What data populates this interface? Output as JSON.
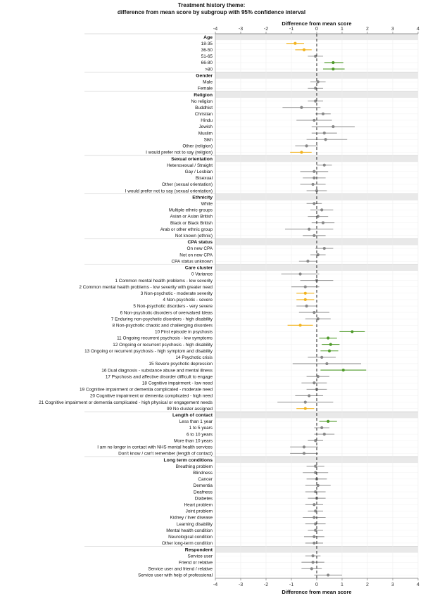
{
  "chart_data": {
    "type": "scatter",
    "title": "Treatment history theme:",
    "subtitle": "difference from mean score by subgroup with 95% confidence interval",
    "xlabel": "Difference from mean score",
    "xlabel_bottom": "Difference from mean score",
    "xlim": [
      -4,
      4
    ],
    "xticks": [
      "-4",
      "-3",
      "-2",
      "-1",
      "0",
      "1",
      "2",
      "3",
      "4"
    ],
    "reference_line": 0,
    "colors": {
      "below": "#f2b21c",
      "above": "#4f9a2a",
      "neutral": "#888888",
      "ci_neutral": "#9a9a9a"
    },
    "groups": [
      {
        "name": "Age",
        "rows": [
          {
            "label": "18-35",
            "value": -0.85,
            "low": -1.2,
            "high": -0.5,
            "sig": "below"
          },
          {
            "label": "36-50",
            "value": -0.5,
            "low": -0.85,
            "high": -0.2,
            "sig": "below"
          },
          {
            "label": "51-65",
            "value": -0.05,
            "low": -0.35,
            "high": 0.25,
            "sig": "none"
          },
          {
            "label": "66-80",
            "value": 0.65,
            "low": 0.3,
            "high": 1.05,
            "sig": "above"
          },
          {
            "label": ">80",
            "value": 0.65,
            "low": 0.25,
            "high": 1.1,
            "sig": "above"
          }
        ]
      },
      {
        "name": "Gender",
        "rows": [
          {
            "label": "Male",
            "value": 0.05,
            "low": -0.25,
            "high": 0.35,
            "sig": "none"
          },
          {
            "label": "Female",
            "value": -0.05,
            "low": -0.35,
            "high": 0.25,
            "sig": "none"
          }
        ]
      },
      {
        "name": "Religion",
        "rows": [
          {
            "label": "No religion",
            "value": -0.05,
            "low": -0.35,
            "high": 0.25,
            "sig": "none"
          },
          {
            "label": "Buddhist",
            "value": -0.6,
            "low": -1.35,
            "high": 0.15,
            "sig": "none"
          },
          {
            "label": "Christian",
            "value": 0.25,
            "low": -0.05,
            "high": 0.55,
            "sig": "none"
          },
          {
            "label": "Hindu",
            "value": -0.1,
            "low": -0.8,
            "high": 0.6,
            "sig": "none"
          },
          {
            "label": "Jewish",
            "value": 0.65,
            "low": -0.2,
            "high": 1.5,
            "sig": "none"
          },
          {
            "label": "Muslim",
            "value": 0.3,
            "low": -0.2,
            "high": 0.8,
            "sig": "none"
          },
          {
            "label": "Sikh",
            "value": 0.35,
            "low": -0.4,
            "high": 1.2,
            "sig": "none"
          },
          {
            "label": "Other (religion)",
            "value": -0.4,
            "low": -0.85,
            "high": 0.05,
            "sig": "none"
          },
          {
            "label": "I would prefer not to say (religion)",
            "value": -0.6,
            "low": -1.05,
            "high": -0.2,
            "sig": "below"
          }
        ]
      },
      {
        "name": "Sexual orientation",
        "rows": [
          {
            "label": "Heterosexual / Straight",
            "value": 0.3,
            "low": 0.0,
            "high": 0.6,
            "sig": "none"
          },
          {
            "label": "Gay / Lesbian",
            "value": -0.1,
            "low": -0.65,
            "high": 0.45,
            "sig": "none"
          },
          {
            "label": "Bisexual",
            "value": -0.1,
            "low": -0.55,
            "high": 0.35,
            "sig": "none"
          },
          {
            "label": "Other (sexual orientation)",
            "value": -0.15,
            "low": -0.65,
            "high": 0.35,
            "sig": "none"
          },
          {
            "label": "I would prefer not to say (sexual orientation)",
            "value": 0.0,
            "low": -0.4,
            "high": 0.4,
            "sig": "none"
          }
        ]
      },
      {
        "name": "Ethnicity",
        "rows": [
          {
            "label": "White",
            "value": -0.1,
            "low": -0.4,
            "high": 0.2,
            "sig": "none"
          },
          {
            "label": "Multiple ethnic groups",
            "value": 0.2,
            "low": -0.25,
            "high": 0.65,
            "sig": "none"
          },
          {
            "label": "Asian or Asian British",
            "value": 0.05,
            "low": -0.35,
            "high": 0.45,
            "sig": "none"
          },
          {
            "label": "Black or Black British",
            "value": 0.25,
            "low": -0.2,
            "high": 0.7,
            "sig": "none"
          },
          {
            "label": "Arab or other ethnic group",
            "value": -0.3,
            "low": -1.25,
            "high": 0.65,
            "sig": "none"
          },
          {
            "label": "Not known (ethnic)",
            "value": -0.1,
            "low": -0.55,
            "high": 0.35,
            "sig": "none"
          }
        ]
      },
      {
        "name": "CPA status",
        "rows": [
          {
            "label": "On new CPA",
            "value": 0.3,
            "low": -0.05,
            "high": 0.65,
            "sig": "none"
          },
          {
            "label": "Not on new CPA",
            "value": 0.05,
            "low": -0.25,
            "high": 0.35,
            "sig": "none"
          },
          {
            "label": "CPA status unknown",
            "value": -0.35,
            "low": -0.7,
            "high": 0.0,
            "sig": "none"
          }
        ]
      },
      {
        "name": "Care cluster",
        "rows": [
          {
            "label": "0 Variance",
            "value": -0.65,
            "low": -1.4,
            "high": 0.1,
            "sig": "none"
          },
          {
            "label": "1 Common mental health problems - low severity",
            "value": 0.0,
            "low": -0.65,
            "high": 0.65,
            "sig": "none"
          },
          {
            "label": "2 Common mental health problems - low severity with greater need",
            "value": -0.45,
            "low": -1.0,
            "high": 0.1,
            "sig": "none"
          },
          {
            "label": "3 Non-psychotic - moderate severity",
            "value": -0.45,
            "low": -0.8,
            "high": -0.1,
            "sig": "below"
          },
          {
            "label": "4 Non-psychotic - severe",
            "value": -0.45,
            "low": -0.8,
            "high": -0.1,
            "sig": "below"
          },
          {
            "label": "5 Non-psychotic disorders - very severe",
            "value": -0.4,
            "low": -0.8,
            "high": 0.0,
            "sig": "none"
          },
          {
            "label": "6 Non-psychotic disorders of overvalued Ideas",
            "value": -0.1,
            "low": -0.7,
            "high": 0.5,
            "sig": "none"
          },
          {
            "label": "7 Enduring non-psychotic disorders - high disability",
            "value": 0.05,
            "low": -0.45,
            "high": 0.55,
            "sig": "none"
          },
          {
            "label": "8 Non-psychotic chaotic and challenging disorders",
            "value": -0.65,
            "low": -1.15,
            "high": -0.15,
            "sig": "below"
          },
          {
            "label": "10 First episode in psychosis",
            "value": 1.4,
            "low": 0.9,
            "high": 1.9,
            "sig": "above"
          },
          {
            "label": "11 Ongoing recurrent psychosis - low symptoms",
            "value": 0.45,
            "low": 0.1,
            "high": 0.8,
            "sig": "above"
          },
          {
            "label": "12 Ongoing or recurrent psychosis - high disability",
            "value": 0.55,
            "low": 0.2,
            "high": 0.9,
            "sig": "above"
          },
          {
            "label": "13 Ongoing or recurrent psychosis - high symptom and disability",
            "value": 0.5,
            "low": 0.15,
            "high": 0.85,
            "sig": "above"
          },
          {
            "label": "14 Psychotic crisis",
            "value": 0.2,
            "low": -0.35,
            "high": 0.75,
            "sig": "none"
          },
          {
            "label": "15 Severe psychotic depression",
            "value": 0.4,
            "low": -0.95,
            "high": 1.75,
            "sig": "none"
          },
          {
            "label": "16 Dual diagnosis - substance abuse and mental illness",
            "value": 1.05,
            "low": 0.15,
            "high": 1.95,
            "sig": "above"
          },
          {
            "label": "17 Psychosis and affective disorder difficult to engage",
            "value": 0.05,
            "low": -0.4,
            "high": 0.5,
            "sig": "none"
          },
          {
            "label": "18 Cognitive impairment - low need",
            "value": -0.1,
            "low": -0.6,
            "high": 0.4,
            "sig": "none"
          },
          {
            "label": "19 Cognitive impairment or dementia complicated - moderate need",
            "value": 0.0,
            "low": -0.4,
            "high": 0.4,
            "sig": "none"
          },
          {
            "label": "20 Cognitive impairment or dementia complicated - high need",
            "value": -0.3,
            "low": -0.85,
            "high": 0.25,
            "sig": "none"
          },
          {
            "label": "21 Cognitive impairment or dementia complicated - high physical or engagement needs",
            "value": -0.45,
            "low": -1.55,
            "high": 0.65,
            "sig": "none"
          },
          {
            "label": "99 No cluster assigned",
            "value": -0.45,
            "low": -0.8,
            "high": -0.1,
            "sig": "below"
          }
        ]
      },
      {
        "name": "Length of contact",
        "rows": [
          {
            "label": "Less than 1 year",
            "value": 0.45,
            "low": 0.1,
            "high": 0.8,
            "sig": "above"
          },
          {
            "label": "1 to 5 years",
            "value": 0.2,
            "low": -0.1,
            "high": 0.5,
            "sig": "none"
          },
          {
            "label": "6 to 10 years",
            "value": 0.3,
            "low": -0.1,
            "high": 0.7,
            "sig": "none"
          },
          {
            "label": "More than 10 years",
            "value": -0.05,
            "low": -0.35,
            "high": 0.25,
            "sig": "none"
          },
          {
            "label": "I am no longer in contact with NHS mental health services",
            "value": -0.5,
            "low": -1.05,
            "high": 0.05,
            "sig": "none"
          },
          {
            "label": "Don't know / can't remember (length of contact)",
            "value": -0.5,
            "low": -1.05,
            "high": 0.05,
            "sig": "none"
          }
        ]
      },
      {
        "name": "Long term conditions",
        "rows": [
          {
            "label": "Breathing problem",
            "value": -0.05,
            "low": -0.4,
            "high": 0.3,
            "sig": "none"
          },
          {
            "label": "Blindness",
            "value": -0.05,
            "low": -0.55,
            "high": 0.45,
            "sig": "none"
          },
          {
            "label": "Cancer",
            "value": 0.0,
            "low": -0.4,
            "high": 0.4,
            "sig": "none"
          },
          {
            "label": "Dementia",
            "value": 0.05,
            "low": -0.45,
            "high": 0.55,
            "sig": "none"
          },
          {
            "label": "Deafness",
            "value": -0.05,
            "low": -0.45,
            "high": 0.35,
            "sig": "none"
          },
          {
            "label": "Diabetes",
            "value": 0.0,
            "low": -0.35,
            "high": 0.35,
            "sig": "none"
          },
          {
            "label": "Heart problem",
            "value": -0.1,
            "low": -0.45,
            "high": 0.25,
            "sig": "none"
          },
          {
            "label": "Joint problem",
            "value": -0.05,
            "low": -0.35,
            "high": 0.25,
            "sig": "none"
          },
          {
            "label": "Kidney / liver disease",
            "value": -0.1,
            "low": -0.55,
            "high": 0.35,
            "sig": "none"
          },
          {
            "label": "Learning disability",
            "value": -0.05,
            "low": -0.45,
            "high": 0.35,
            "sig": "none"
          },
          {
            "label": "Mental health condition",
            "value": -0.05,
            "low": -0.35,
            "high": 0.25,
            "sig": "none"
          },
          {
            "label": "Neurological condition",
            "value": -0.1,
            "low": -0.5,
            "high": 0.3,
            "sig": "none"
          },
          {
            "label": "Other long-term condition",
            "value": -0.1,
            "low": -0.45,
            "high": 0.25,
            "sig": "none"
          }
        ]
      },
      {
        "name": "Respondent",
        "rows": [
          {
            "label": "Service user",
            "value": -0.15,
            "low": -0.45,
            "high": 0.15,
            "sig": "none"
          },
          {
            "label": "Friend or relative",
            "value": -0.15,
            "low": -0.6,
            "high": 0.3,
            "sig": "none"
          },
          {
            "label": "Service user and friend / relative",
            "value": -0.2,
            "low": -0.6,
            "high": 0.2,
            "sig": "none"
          },
          {
            "label": "Service user with help of professional",
            "value": 0.45,
            "low": -0.1,
            "high": 1.0,
            "sig": "none"
          }
        ]
      }
    ]
  }
}
